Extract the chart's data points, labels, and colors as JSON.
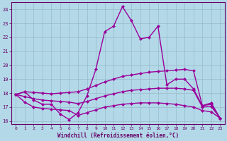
{
  "xlabel": "Windchill (Refroidissement éolien,°C)",
  "x_values": [
    0,
    1,
    2,
    3,
    4,
    5,
    6,
    7,
    8,
    9,
    10,
    11,
    12,
    13,
    14,
    15,
    16,
    17,
    18,
    19,
    20,
    21,
    22,
    23
  ],
  "s1_y": [
    17.9,
    18.1,
    17.5,
    17.2,
    17.2,
    16.5,
    16.1,
    16.6,
    17.8,
    19.7,
    22.4,
    22.8,
    24.2,
    23.2,
    21.9,
    22.0,
    22.8,
    18.6,
    19.0,
    19.0,
    18.3,
    17.1,
    17.3,
    16.2
  ],
  "s2_y": [
    17.9,
    18.1,
    18.05,
    18.0,
    17.95,
    18.0,
    18.05,
    18.1,
    18.3,
    18.55,
    18.8,
    19.0,
    19.2,
    19.3,
    19.4,
    19.5,
    19.55,
    19.6,
    19.65,
    19.7,
    19.6,
    17.1,
    17.2,
    16.2
  ],
  "s3_y": [
    17.9,
    17.75,
    17.6,
    17.5,
    17.45,
    17.4,
    17.35,
    17.25,
    17.4,
    17.6,
    17.8,
    17.95,
    18.1,
    18.2,
    18.25,
    18.3,
    18.35,
    18.35,
    18.35,
    18.3,
    18.2,
    17.0,
    17.05,
    16.2
  ],
  "s4_y": [
    17.9,
    17.35,
    17.0,
    16.9,
    16.85,
    16.8,
    16.75,
    16.4,
    16.6,
    16.8,
    17.0,
    17.1,
    17.2,
    17.25,
    17.3,
    17.3,
    17.3,
    17.25,
    17.2,
    17.1,
    17.0,
    16.75,
    16.65,
    16.2
  ],
  "ylim": [
    15.8,
    24.5
  ],
  "xlim": [
    -0.5,
    23.5
  ],
  "yticks": [
    16,
    17,
    18,
    19,
    20,
    21,
    22,
    23,
    24
  ],
  "xticks": [
    0,
    1,
    2,
    3,
    4,
    5,
    6,
    7,
    8,
    9,
    10,
    11,
    12,
    13,
    14,
    15,
    16,
    17,
    18,
    19,
    20,
    21,
    22,
    23
  ],
  "bg_color": "#b3d9e8",
  "grid_color": "#99b8cc",
  "spine_color": "#660066",
  "tick_color": "#660066",
  "xlabel_color": "#660066",
  "line_color": "#990099",
  "marker_size": 2.5,
  "line_width": 1.0
}
